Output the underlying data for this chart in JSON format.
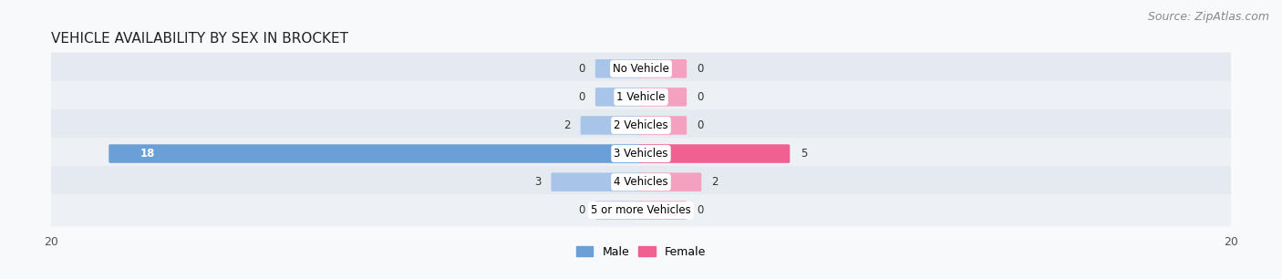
{
  "title": "VEHICLE AVAILABILITY BY SEX IN BROCKET",
  "source": "Source: ZipAtlas.com",
  "categories": [
    "No Vehicle",
    "1 Vehicle",
    "2 Vehicles",
    "3 Vehicles",
    "4 Vehicles",
    "5 or more Vehicles"
  ],
  "male_values": [
    0,
    0,
    2,
    18,
    3,
    0
  ],
  "female_values": [
    0,
    0,
    0,
    5,
    2,
    0
  ],
  "xlim": 20,
  "male_color_light": "#a8c4e8",
  "male_color_dark": "#6aa0d8",
  "female_color_light": "#f4a0bf",
  "female_color_dark": "#f06090",
  "row_bg_odd": "#e8edf2",
  "row_bg_even": "#f0f4f8",
  "title_fontsize": 11,
  "source_fontsize": 9,
  "tick_fontsize": 9,
  "value_fontsize": 8.5,
  "category_fontsize": 8.5,
  "stub_size": 1.5
}
